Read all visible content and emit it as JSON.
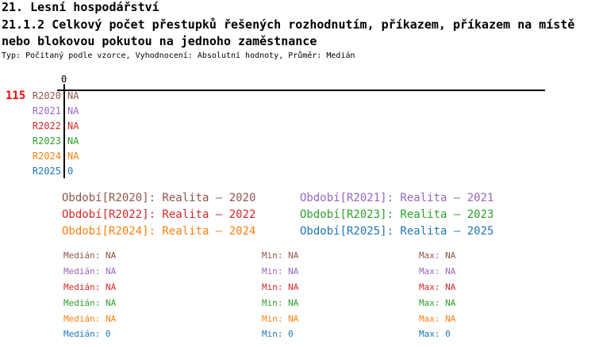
{
  "header": {
    "section_title": "21. Lesní hospodářství",
    "title_line1": "21.1.2 Celkový počet přestupků řešených rozhodnutím, příkazem, příkazem na místě",
    "title_line2": "nebo blokovou pokutou na jednoho zaměstnance",
    "meta": "Typ: Počítaný podle vzorce, Vyhodnocení: Absolutní hodnoty, Průměr: Medián"
  },
  "chart": {
    "zero_tick": "0",
    "row_count": "115",
    "row_count_color": "#ff0000",
    "axis_color": "#000000",
    "rows": [
      {
        "label": "R2020",
        "value": "NA",
        "color": "#8c564b"
      },
      {
        "label": "R2021",
        "value": "NA",
        "color": "#9467bd"
      },
      {
        "label": "R2022",
        "value": "NA",
        "color": "#d62728"
      },
      {
        "label": "R2023",
        "value": "NA",
        "color": "#2ca02c"
      },
      {
        "label": "R2024",
        "value": "NA",
        "color": "#ff7f0e"
      },
      {
        "label": "R2025",
        "value": "0",
        "color": "#1f77b4"
      }
    ]
  },
  "legend": {
    "items": [
      {
        "label": "Období[R2020]: Realita – 2020",
        "color": "#8c564b"
      },
      {
        "label": "Období[R2021]: Realita – 2021",
        "color": "#9467bd"
      },
      {
        "label": "Období[R2022]: Realita – 2022",
        "color": "#d62728"
      },
      {
        "label": "Období[R2023]: Realita – 2023",
        "color": "#2ca02c"
      },
      {
        "label": "Období[R2024]: Realita – 2024",
        "color": "#ff7f0e"
      },
      {
        "label": "Období[R2025]: Realita – 2025",
        "color": "#1f77b4"
      }
    ]
  },
  "stats": {
    "rows": [
      {
        "median": "Medián: NA",
        "min": "Min: NA",
        "max": "Max: NA",
        "color": "#8c564b"
      },
      {
        "median": "Medián: NA",
        "min": "Min: NA",
        "max": "Max: NA",
        "color": "#9467bd"
      },
      {
        "median": "Medián: NA",
        "min": "Min: NA",
        "max": "Max: NA",
        "color": "#d62728"
      },
      {
        "median": "Medián: NA",
        "min": "Min: NA",
        "max": "Max: NA",
        "color": "#2ca02c"
      },
      {
        "median": "Medián: NA",
        "min": "Min: NA",
        "max": "Max: NA",
        "color": "#ff7f0e"
      },
      {
        "median": "Medián: 0",
        "min": "Min: 0",
        "max": "Max: 0",
        "color": "#1f77b4"
      }
    ]
  },
  "chart_data": {
    "type": "bar",
    "orientation": "horizontal",
    "title": "21.1.2 Celkový počet přestupků řešených rozhodnutím, příkazem, příkazem na místě nebo blokovou pokutou na jednoho zaměstnance",
    "section": "21. Lesní hospodářství",
    "subtitle": "Typ: Počítaný podle vzorce, Vyhodnocení: Absolutní hodnoty, Průměr: Medián",
    "categories": [
      "R2020",
      "R2021",
      "R2022",
      "R2023",
      "R2024",
      "R2025"
    ],
    "values": [
      null,
      null,
      null,
      null,
      null,
      0
    ],
    "displayed_values": [
      "NA",
      "NA",
      "NA",
      "NA",
      "NA",
      "0"
    ],
    "value_axis_ticks": [
      0
    ],
    "row_count_annotation": 115,
    "series_colors": [
      "#8c564b",
      "#9467bd",
      "#d62728",
      "#2ca02c",
      "#ff7f0e",
      "#1f77b4"
    ],
    "legend_position": "bottom",
    "legend_entries": [
      "Období[R2020]: Realita – 2020",
      "Období[R2021]: Realita – 2021",
      "Období[R2022]: Realita – 2022",
      "Období[R2023]: Realita – 2023",
      "Období[R2024]: Realita – 2024",
      "Období[R2025]: Realita – 2025"
    ],
    "stats": [
      {
        "series": "R2020",
        "median": "NA",
        "min": "NA",
        "max": "NA"
      },
      {
        "series": "R2021",
        "median": "NA",
        "min": "NA",
        "max": "NA"
      },
      {
        "series": "R2022",
        "median": "NA",
        "min": "NA",
        "max": "NA"
      },
      {
        "series": "R2023",
        "median": "NA",
        "min": "NA",
        "max": "NA"
      },
      {
        "series": "R2024",
        "median": "NA",
        "min": "NA",
        "max": "NA"
      },
      {
        "series": "R2025",
        "median": 0,
        "min": 0,
        "max": 0
      }
    ]
  }
}
